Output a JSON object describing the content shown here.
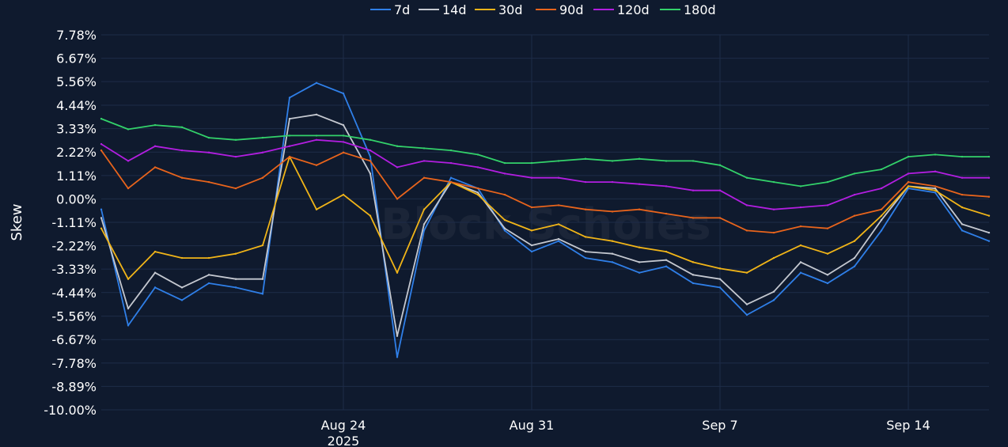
{
  "chart_data": {
    "type": "line",
    "ylabel": "Skew",
    "y_unit": "%",
    "ylim": [
      -10.0,
      7.78
    ],
    "y_ticks": [
      7.78,
      6.67,
      5.56,
      4.44,
      3.33,
      2.22,
      1.11,
      0.0,
      -1.11,
      -2.22,
      -3.33,
      -4.44,
      -5.56,
      -6.67,
      -7.78,
      -8.89,
      -10.0
    ],
    "y_tick_labels": [
      "7.78%",
      "6.67%",
      "5.56%",
      "4.44%",
      "3.33%",
      "2.22%",
      "1.11%",
      "0.00%",
      "-1.11%",
      "-2.22%",
      "-3.33%",
      "-4.44%",
      "-5.56%",
      "-6.67%",
      "-7.78%",
      "-8.89%",
      "-10.00%"
    ],
    "xlim": [
      "2025-08-15",
      "2025-09-17"
    ],
    "x_ticks": [
      {
        "date": "2025-08-24",
        "label": "Aug 24",
        "sublabel": "2025"
      },
      {
        "date": "2025-08-31",
        "label": "Aug 31"
      },
      {
        "date": "2025-09-07",
        "label": "Sep 7"
      },
      {
        "date": "2025-09-14",
        "label": "Sep 14"
      }
    ],
    "grid": true,
    "legend_position": "top",
    "watermark": "Block Scholes",
    "x": [
      "2025-08-15",
      "2025-08-16",
      "2025-08-17",
      "2025-08-18",
      "2025-08-19",
      "2025-08-20",
      "2025-08-21",
      "2025-08-22",
      "2025-08-23",
      "2025-08-24",
      "2025-08-25",
      "2025-08-26",
      "2025-08-27",
      "2025-08-28",
      "2025-08-29",
      "2025-08-30",
      "2025-08-31",
      "2025-09-01",
      "2025-09-02",
      "2025-09-03",
      "2025-09-04",
      "2025-09-05",
      "2025-09-06",
      "2025-09-07",
      "2025-09-08",
      "2025-09-09",
      "2025-09-10",
      "2025-09-11",
      "2025-09-12",
      "2025-09-13",
      "2025-09-14",
      "2025-09-15",
      "2025-09-16",
      "2025-09-17"
    ],
    "series": [
      {
        "name": "7d",
        "color": "#2f7fe8",
        "values": [
          -0.5,
          -6.0,
          -4.2,
          -4.8,
          -4.0,
          -4.2,
          -4.5,
          4.8,
          5.5,
          5.0,
          2.0,
          -7.5,
          -1.5,
          1.0,
          0.5,
          -1.5,
          -2.5,
          -2.0,
          -2.8,
          -3.0,
          -3.5,
          -3.2,
          -4.0,
          -4.2,
          -5.5,
          -4.8,
          -3.5,
          -4.0,
          -3.2,
          -1.5,
          0.5,
          0.3,
          -1.5,
          -2.0
        ]
      },
      {
        "name": "14d",
        "color": "#c4c8d0",
        "values": [
          -0.9,
          -5.2,
          -3.5,
          -4.2,
          -3.6,
          -3.8,
          -3.8,
          3.8,
          4.0,
          3.5,
          1.2,
          -6.5,
          -1.2,
          0.8,
          0.3,
          -1.4,
          -2.2,
          -1.9,
          -2.5,
          -2.6,
          -3.0,
          -2.9,
          -3.6,
          -3.8,
          -5.0,
          -4.4,
          -3.0,
          -3.6,
          -2.8,
          -1.0,
          0.6,
          0.5,
          -1.2,
          -1.6
        ]
      },
      {
        "name": "30d",
        "color": "#f0b418",
        "values": [
          -1.4,
          -3.8,
          -2.5,
          -2.8,
          -2.8,
          -2.6,
          -2.2,
          2.0,
          -0.5,
          0.2,
          -0.8,
          -3.5,
          -0.5,
          0.8,
          0.2,
          -1.0,
          -1.5,
          -1.2,
          -1.8,
          -2.0,
          -2.3,
          -2.5,
          -3.0,
          -3.3,
          -3.5,
          -2.8,
          -2.2,
          -2.6,
          -2.0,
          -0.8,
          0.6,
          0.4,
          -0.4,
          -0.8
        ]
      },
      {
        "name": "90d",
        "color": "#e8641c",
        "values": [
          2.3,
          0.5,
          1.5,
          1.0,
          0.8,
          0.5,
          1.0,
          2.0,
          1.6,
          2.2,
          1.8,
          0.0,
          1.0,
          0.8,
          0.5,
          0.2,
          -0.4,
          -0.3,
          -0.5,
          -0.6,
          -0.5,
          -0.7,
          -0.9,
          -0.9,
          -1.5,
          -1.6,
          -1.3,
          -1.4,
          -0.8,
          -0.5,
          0.8,
          0.6,
          0.2,
          0.1
        ]
      },
      {
        "name": "120d",
        "color": "#b21ee0",
        "values": [
          2.6,
          1.8,
          2.5,
          2.3,
          2.2,
          2.0,
          2.2,
          2.5,
          2.8,
          2.7,
          2.3,
          1.5,
          1.8,
          1.7,
          1.5,
          1.2,
          1.0,
          1.0,
          0.8,
          0.8,
          0.7,
          0.6,
          0.4,
          0.4,
          -0.3,
          -0.5,
          -0.4,
          -0.3,
          0.2,
          0.5,
          1.2,
          1.3,
          1.0,
          1.0
        ]
      },
      {
        "name": "180d",
        "color": "#33d16a",
        "values": [
          3.8,
          3.3,
          3.5,
          3.4,
          2.9,
          2.8,
          2.9,
          3.0,
          3.0,
          3.0,
          2.8,
          2.5,
          2.4,
          2.3,
          2.1,
          1.7,
          1.7,
          1.8,
          1.9,
          1.8,
          1.9,
          1.8,
          1.8,
          1.6,
          1.0,
          0.8,
          0.6,
          0.8,
          1.2,
          1.4,
          2.0,
          2.1,
          2.0,
          2.0
        ]
      }
    ]
  }
}
